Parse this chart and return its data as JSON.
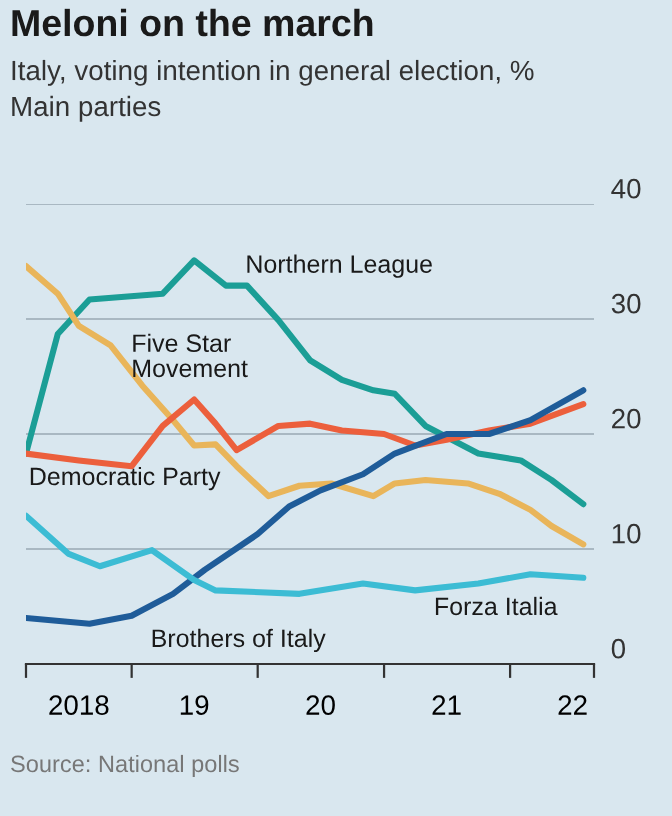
{
  "chart_data": {
    "type": "line",
    "title": "Meloni on the march",
    "subtitle": "Italy, voting intention in general election, %\nMain parties",
    "annotations": [
      "Source: National polls"
    ],
    "series": [
      {
        "name": "Northern League",
        "color": "#1b9e96",
        "x": [
          "2018-03",
          "2018-06",
          "2018-09",
          "2019-04",
          "2019-07",
          "2019-10",
          "2019-12",
          "2020-03",
          "2020-06",
          "2020-09",
          "2020-12",
          "2021-02",
          "2021-05",
          "2021-10",
          "2022-02",
          "2022-05",
          "2022-08"
        ],
        "values": [
          18.3,
          28.7,
          31.7,
          32.2,
          35.1,
          32.9,
          32.9,
          29.9,
          26.4,
          24.7,
          23.8,
          23.5,
          20.7,
          18.3,
          17.7,
          16.0,
          13.9
        ]
      },
      {
        "name": "Five Star\nMovement",
        "color": "#e9b55a",
        "x": [
          "2018-03",
          "2018-06",
          "2018-08",
          "2018-11",
          "2019-02",
          "2019-05",
          "2019-07",
          "2019-09",
          "2019-11",
          "2020-02",
          "2020-05",
          "2020-08",
          "2020-12",
          "2021-02",
          "2021-05",
          "2021-09",
          "2021-12",
          "2022-03",
          "2022-05",
          "2022-08"
        ],
        "values": [
          34.6,
          32.2,
          29.4,
          27.7,
          24.2,
          21.2,
          19.0,
          19.1,
          17.2,
          14.6,
          15.5,
          15.7,
          14.6,
          15.7,
          16.0,
          15.7,
          14.8,
          13.4,
          12.0,
          10.4
        ]
      },
      {
        "name": "Democratic Party",
        "color": "#ec5f3c",
        "x": [
          "2018-03",
          "2018-08",
          "2019-01",
          "2019-04",
          "2019-07",
          "2019-09",
          "2019-11",
          "2020-03",
          "2020-06",
          "2020-09",
          "2021-01",
          "2021-04",
          "2021-07",
          "2021-11",
          "2022-03",
          "2022-08"
        ],
        "values": [
          18.3,
          17.7,
          17.2,
          20.7,
          23.0,
          20.9,
          18.6,
          20.7,
          20.9,
          20.3,
          20.0,
          19.0,
          19.5,
          20.3,
          20.9,
          22.6
        ]
      },
      {
        "name": "Brothers of Italy",
        "color": "#1f5c99",
        "x": [
          "2018-03",
          "2018-09",
          "2019-01",
          "2019-05",
          "2019-08",
          "2020-01",
          "2020-04",
          "2020-07",
          "2020-11",
          "2021-02",
          "2021-07",
          "2021-11",
          "2022-03",
          "2022-08"
        ],
        "values": [
          4.0,
          3.5,
          4.2,
          6.1,
          8.2,
          11.3,
          13.7,
          15.1,
          16.5,
          18.3,
          20.0,
          20.0,
          21.2,
          23.8
        ]
      },
      {
        "name": "Forza Italia",
        "color": "#3cbcd4",
        "x": [
          "2018-03",
          "2018-07",
          "2018-10",
          "2019-03",
          "2019-07",
          "2019-09",
          "2020-05",
          "2020-11",
          "2021-04",
          "2021-10",
          "2022-03",
          "2022-08"
        ],
        "values": [
          12.9,
          9.6,
          8.5,
          9.9,
          7.3,
          6.4,
          6.1,
          7.0,
          6.4,
          7.0,
          7.8,
          7.5
        ]
      }
    ],
    "xlim": [
      "2018-03",
      "2022-09"
    ],
    "xticks": [
      {
        "value": "2018-03",
        "label": null
      },
      {
        "value": "2018-08",
        "label": "2018"
      },
      {
        "value": "2019-01",
        "label": null
      },
      {
        "value": "2019-07",
        "label": "19"
      },
      {
        "value": "2020-01",
        "label": null
      },
      {
        "value": "2020-07",
        "label": "20"
      },
      {
        "value": "2021-01",
        "label": null
      },
      {
        "value": "2021-07",
        "label": "21"
      },
      {
        "value": "2022-01",
        "label": null
      },
      {
        "value": "2022-07",
        "label": "22"
      },
      {
        "value": "2022-09",
        "label": null
      }
    ],
    "ylim": [
      0,
      40
    ],
    "yticks": [
      0,
      10,
      20,
      30,
      40
    ],
    "grid": "y",
    "legend": false,
    "marker": "none",
    "line_style": "solid"
  }
}
